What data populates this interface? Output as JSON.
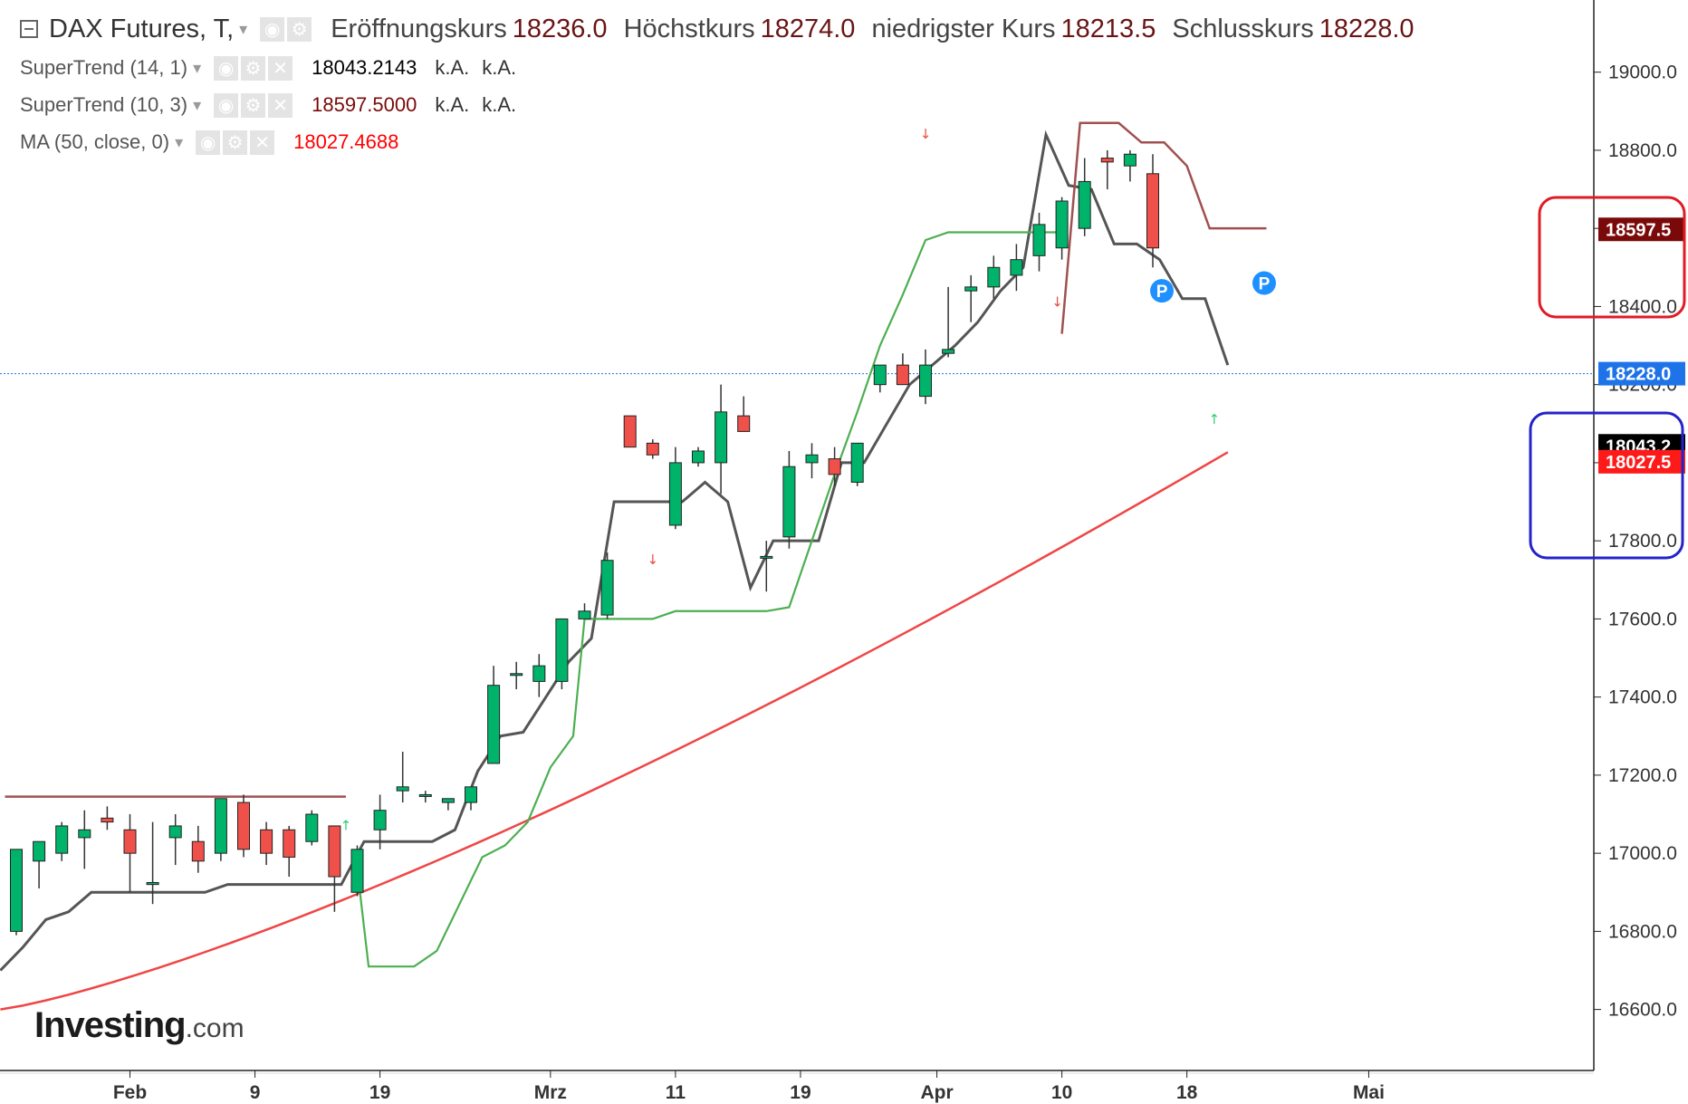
{
  "header": {
    "title": "DAX Futures, T,",
    "ohlc": [
      {
        "label": "Eröffnungskurs",
        "value": "18236.0"
      },
      {
        "label": "Höchstkurs",
        "value": "18274.0"
      },
      {
        "label": "niedrigster Kurs",
        "value": "18213.5"
      },
      {
        "label": "Schlusskurs",
        "value": "18228.0"
      }
    ]
  },
  "indicators": [
    {
      "name": "SuperTrend (14, 1)",
      "value": "18043.2143",
      "na1": "k.A.",
      "na2": "k.A.",
      "color": "#000000"
    },
    {
      "name": "SuperTrend (10, 3)",
      "value": "18597.5000",
      "na1": "k.A.",
      "na2": "k.A.",
      "color": "#7a0a0a"
    },
    {
      "name": "MA (50, close, 0)",
      "value": "18027.4688",
      "color": "#ff0000"
    }
  ],
  "icons": {
    "visibility": "eye-icon",
    "settings": "gear-icon",
    "remove": "close-icon",
    "collapse": "minus-box-icon",
    "dropdown": "caret-down-icon"
  },
  "logo": {
    "brand": "Investing",
    "suffix": ".com"
  },
  "chart_data": {
    "type": "candlestick",
    "y_axis": {
      "ticks": [
        16600,
        16800,
        17000,
        17200,
        17400,
        17600,
        17800,
        18000,
        18200,
        18400,
        18600,
        18800,
        19000
      ],
      "range": [
        16460,
        19150
      ]
    },
    "x_axis": {
      "labels": [
        {
          "text": "Feb",
          "bar": 5
        },
        {
          "text": "9",
          "bar": 10.5
        },
        {
          "text": "19",
          "bar": 16
        },
        {
          "text": "Mrz",
          "bar": 23.5
        },
        {
          "text": "11",
          "bar": 29
        },
        {
          "text": "19",
          "bar": 34.5
        },
        {
          "text": "Apr",
          "bar": 40.5
        },
        {
          "text": "10",
          "bar": 46
        },
        {
          "text": "18",
          "bar": 51.5
        },
        {
          "text": "Mai",
          "bar": 59.5
        }
      ]
    },
    "colors": {
      "up": "#00b36b",
      "down": "#f0504a",
      "supertrend_14_1": "#555555",
      "supertrend_10_3_up": "#4caf50",
      "supertrend_10_3_down": "#a05050",
      "ma": "#f04545",
      "last_price": "#1e73e8"
    },
    "candles": [
      {
        "o": 16800,
        "h": 17010,
        "l": 16790,
        "c": 17010
      },
      {
        "o": 16980,
        "h": 17030,
        "l": 16910,
        "c": 17030
      },
      {
        "o": 17000,
        "h": 17080,
        "l": 16980,
        "c": 17070
      },
      {
        "o": 17040,
        "h": 17110,
        "l": 16960,
        "c": 17060
      },
      {
        "o": 17090,
        "h": 17120,
        "l": 17060,
        "c": 17080
      },
      {
        "o": 17060,
        "h": 17100,
        "l": 16900,
        "c": 17000
      },
      {
        "o": 16920,
        "h": 17080,
        "l": 16870,
        "c": 16925
      },
      {
        "o": 17040,
        "h": 17100,
        "l": 16970,
        "c": 17070
      },
      {
        "o": 17030,
        "h": 17070,
        "l": 16950,
        "c": 16980
      },
      {
        "o": 17000,
        "h": 17140,
        "l": 16980,
        "c": 17140
      },
      {
        "o": 17130,
        "h": 17150,
        "l": 16990,
        "c": 17010
      },
      {
        "o": 17060,
        "h": 17080,
        "l": 16970,
        "c": 17000
      },
      {
        "o": 17060,
        "h": 17070,
        "l": 16940,
        "c": 16990
      },
      {
        "o": 17030,
        "h": 17110,
        "l": 17020,
        "c": 17100
      },
      {
        "o": 17070,
        "h": 17070,
        "l": 16850,
        "c": 16940
      },
      {
        "o": 16900,
        "h": 17020,
        "l": 16890,
        "c": 17010
      },
      {
        "o": 17060,
        "h": 17150,
        "l": 17010,
        "c": 17110
      },
      {
        "o": 17160,
        "h": 17260,
        "l": 17130,
        "c": 17170
      },
      {
        "o": 17150,
        "h": 17160,
        "l": 17130,
        "c": 17150
      },
      {
        "o": 17130,
        "h": 17140,
        "l": 17110,
        "c": 17140
      },
      {
        "o": 17130,
        "h": 17170,
        "l": 17110,
        "c": 17170
      },
      {
        "o": 17230,
        "h": 17480,
        "l": 17230,
        "c": 17430
      },
      {
        "o": 17460,
        "h": 17490,
        "l": 17420,
        "c": 17460
      },
      {
        "o": 17440,
        "h": 17510,
        "l": 17400,
        "c": 17480
      },
      {
        "o": 17440,
        "h": 17600,
        "l": 17420,
        "c": 17600
      },
      {
        "o": 17600,
        "h": 17640,
        "l": 17600,
        "c": 17620
      },
      {
        "o": 17610,
        "h": 17770,
        "l": 17600,
        "c": 17750
      },
      {
        "o": 18120,
        "h": 18120,
        "l": 18040,
        "c": 18040
      },
      {
        "o": 18050,
        "h": 18060,
        "l": 18010,
        "c": 18020
      },
      {
        "o": 17840,
        "h": 18040,
        "l": 17830,
        "c": 18000
      },
      {
        "o": 18000,
        "h": 18040,
        "l": 17990,
        "c": 18030
      },
      {
        "o": 18000,
        "h": 18200,
        "l": 17920,
        "c": 18130
      },
      {
        "o": 18120,
        "h": 18170,
        "l": 18080,
        "c": 18080
      },
      {
        "o": 17760,
        "h": 17800,
        "l": 17670,
        "c": 17760
      },
      {
        "o": 17810,
        "h": 18030,
        "l": 17780,
        "c": 17990
      },
      {
        "o": 18000,
        "h": 18050,
        "l": 17960,
        "c": 18020
      },
      {
        "o": 18010,
        "h": 18040,
        "l": 17940,
        "c": 17970
      },
      {
        "o": 17950,
        "h": 18050,
        "l": 17940,
        "c": 18050
      },
      {
        "o": 18200,
        "h": 18230,
        "l": 18180,
        "c": 18250
      },
      {
        "o": 18250,
        "h": 18280,
        "l": 18220,
        "c": 18200
      },
      {
        "o": 18170,
        "h": 18290,
        "l": 18150,
        "c": 18250
      },
      {
        "o": 18280,
        "h": 18450,
        "l": 18270,
        "c": 18290
      },
      {
        "o": 18440,
        "h": 18480,
        "l": 18360,
        "c": 18450
      },
      {
        "o": 18450,
        "h": 18530,
        "l": 18420,
        "c": 18500
      },
      {
        "o": 18480,
        "h": 18560,
        "l": 18440,
        "c": 18520
      },
      {
        "o": 18530,
        "h": 18640,
        "l": 18490,
        "c": 18610
      },
      {
        "o": 18550,
        "h": 18680,
        "l": 18520,
        "c": 18670
      },
      {
        "o": 18600,
        "h": 18780,
        "l": 18580,
        "c": 18720
      },
      {
        "o": 18780,
        "h": 18800,
        "l": 18700,
        "c": 18770
      },
      {
        "o": 18760,
        "h": 18800,
        "l": 18720,
        "c": 18790
      },
      {
        "o": 18740,
        "h": 18790,
        "l": 18500,
        "c": 18550
      }
    ]
  }
}
